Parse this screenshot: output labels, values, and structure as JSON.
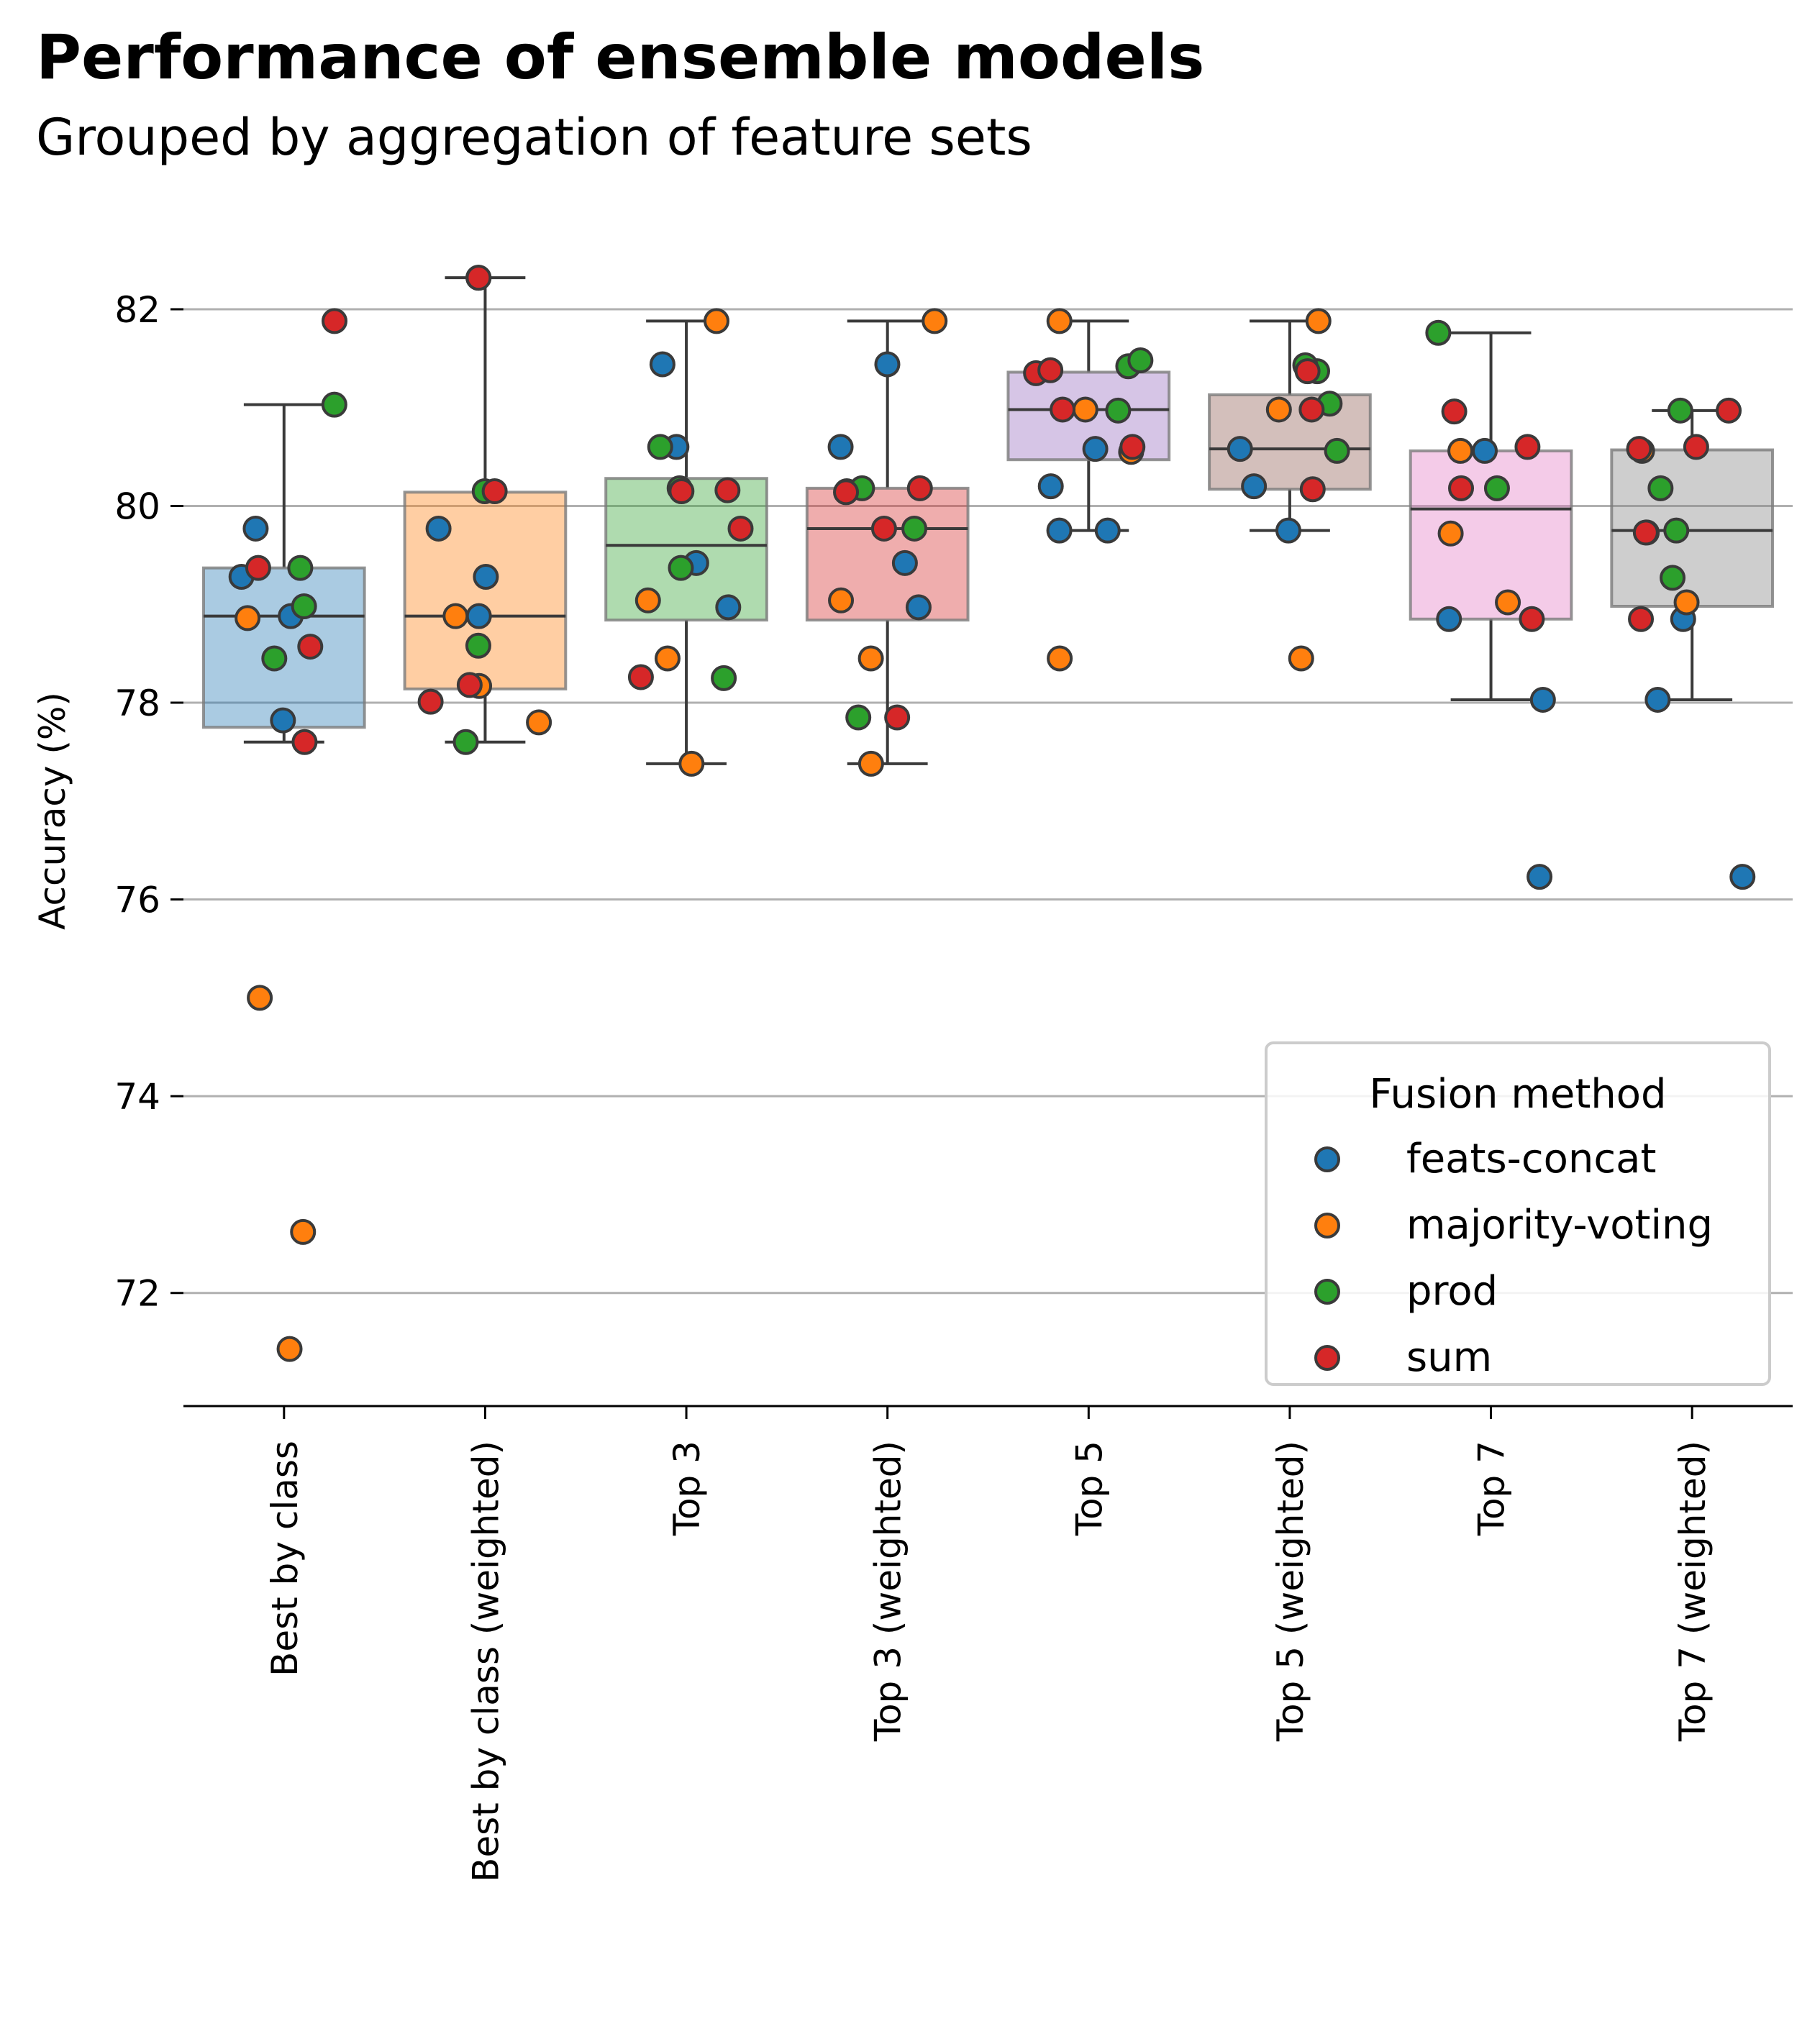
{
  "title": "Performance of ensemble models",
  "subtitle": "Grouped by aggregation of feature sets",
  "chart_data": {
    "type": "box+strip",
    "ylabel": "Accuracy (%)",
    "xlabel": "",
    "ylim": [
      70.85,
      82.95
    ],
    "yticks": [
      72,
      74,
      76,
      78,
      80,
      82
    ],
    "grid": "horizontal",
    "categories": [
      "Best by class",
      "Best by class (weighted)",
      "Top 3",
      "Top 3 (weighted)",
      "Top 5",
      "Top 5 (weighted)",
      "Top 7",
      "Top 7 (weighted)"
    ],
    "box_colors": [
      "#1f77b4",
      "#ff7f0e",
      "#2ca02c",
      "#d62728",
      "#9467bd",
      "#8c564b",
      "#e377c2",
      "#7f7f7f"
    ],
    "boxes": [
      {
        "q1": 77.75,
        "median": 78.88,
        "q3": 79.37,
        "whisker_low": 77.6,
        "whisker_high": 81.03
      },
      {
        "q1": 78.14,
        "median": 78.88,
        "q3": 80.14,
        "whisker_low": 77.6,
        "whisker_high": 82.32
      },
      {
        "q1": 78.84,
        "median": 79.6,
        "q3": 80.28,
        "whisker_low": 77.38,
        "whisker_high": 81.88
      },
      {
        "q1": 78.84,
        "median": 79.77,
        "q3": 80.18,
        "whisker_low": 77.38,
        "whisker_high": 81.88
      },
      {
        "q1": 80.47,
        "median": 80.98,
        "q3": 81.36,
        "whisker_low": 79.75,
        "whisker_high": 81.88
      },
      {
        "q1": 80.17,
        "median": 80.58,
        "q3": 81.13,
        "whisker_low": 79.75,
        "whisker_high": 81.88
      },
      {
        "q1": 78.85,
        "median": 79.97,
        "q3": 80.56,
        "whisker_low": 78.03,
        "whisker_high": 81.76
      },
      {
        "q1": 78.98,
        "median": 79.75,
        "q3": 80.57,
        "whisker_low": 78.03,
        "whisker_high": 80.97
      }
    ],
    "legend": {
      "title": "Fusion method",
      "placement": "lower-right"
    },
    "series": [
      {
        "name": "feats-concat",
        "color": "#1f77b4",
        "points": [
          [
            0,
            77.82
          ],
          [
            0,
            78.88
          ],
          [
            0,
            79.28
          ],
          [
            0,
            79.77
          ],
          [
            1,
            78.88
          ],
          [
            1,
            79.28
          ],
          [
            1,
            79.77
          ],
          [
            2,
            78.97
          ],
          [
            2,
            79.42
          ],
          [
            2,
            80.6
          ],
          [
            2,
            81.44
          ],
          [
            3,
            78.97
          ],
          [
            3,
            79.42
          ],
          [
            3,
            80.6
          ],
          [
            3,
            81.44
          ],
          [
            4,
            79.75
          ],
          [
            4,
            79.75
          ],
          [
            4,
            80.2
          ],
          [
            4,
            80.58
          ],
          [
            5,
            79.75
          ],
          [
            5,
            80.2
          ],
          [
            5,
            80.58
          ],
          [
            6,
            76.23
          ],
          [
            6,
            78.03
          ],
          [
            6,
            78.85
          ],
          [
            6,
            80.56
          ],
          [
            7,
            76.23
          ],
          [
            7,
            78.03
          ],
          [
            7,
            78.85
          ]
        ]
      },
      {
        "name": "majority-voting",
        "color": "#ff7f0e",
        "points": [
          [
            0,
            71.43
          ],
          [
            0,
            72.62
          ],
          [
            0,
            75.0
          ],
          [
            0,
            78.86
          ],
          [
            1,
            77.8
          ],
          [
            1,
            78.17
          ],
          [
            1,
            78.88
          ],
          [
            2,
            77.38
          ],
          [
            2,
            78.45
          ],
          [
            2,
            79.04
          ],
          [
            2,
            81.88
          ],
          [
            3,
            77.38
          ],
          [
            3,
            78.45
          ],
          [
            3,
            79.04
          ],
          [
            3,
            81.88
          ],
          [
            4,
            78.45
          ],
          [
            4,
            80.55
          ],
          [
            4,
            80.98
          ],
          [
            4,
            81.88
          ],
          [
            5,
            78.45
          ],
          [
            5,
            80.98
          ],
          [
            5,
            81.88
          ],
          [
            6,
            79.02
          ],
          [
            6,
            79.72
          ],
          [
            6,
            80.56
          ],
          [
            7,
            79.02
          ],
          [
            7,
            79.73
          ],
          [
            7,
            80.56
          ]
        ]
      },
      {
        "name": "prod",
        "color": "#2ca02c",
        "points": [
          [
            0,
            78.45
          ],
          [
            0,
            78.98
          ],
          [
            0,
            79.37
          ],
          [
            0,
            81.03
          ],
          [
            1,
            77.6
          ],
          [
            1,
            78.58
          ],
          [
            1,
            80.15
          ],
          [
            1,
            82.32
          ],
          [
            2,
            78.25
          ],
          [
            2,
            79.37
          ],
          [
            2,
            80.18
          ],
          [
            2,
            80.6
          ],
          [
            3,
            77.85
          ],
          [
            3,
            79.77
          ],
          [
            3,
            80.15
          ],
          [
            3,
            80.18
          ],
          [
            4,
            80.97
          ],
          [
            4,
            81.42
          ],
          [
            4,
            81.48
          ],
          [
            5,
            80.56
          ],
          [
            5,
            81.04
          ],
          [
            5,
            81.37
          ],
          [
            5,
            81.43
          ],
          [
            6,
            80.18
          ],
          [
            6,
            81.76
          ],
          [
            7,
            79.27
          ],
          [
            7,
            79.75
          ],
          [
            7,
            80.18
          ],
          [
            7,
            80.97
          ]
        ]
      },
      {
        "name": "sum",
        "color": "#d62728",
        "points": [
          [
            0,
            77.6
          ],
          [
            0,
            78.57
          ],
          [
            0,
            79.37
          ],
          [
            0,
            81.88
          ],
          [
            1,
            78.01
          ],
          [
            1,
            78.18
          ],
          [
            1,
            80.15
          ],
          [
            1,
            82.32
          ],
          [
            2,
            78.26
          ],
          [
            2,
            79.77
          ],
          [
            2,
            80.15
          ],
          [
            2,
            80.16
          ],
          [
            3,
            77.85
          ],
          [
            3,
            79.77
          ],
          [
            3,
            80.14
          ],
          [
            3,
            80.18
          ],
          [
            4,
            80.6
          ],
          [
            4,
            80.98
          ],
          [
            4,
            81.35
          ],
          [
            4,
            81.38
          ],
          [
            5,
            80.17
          ],
          [
            5,
            80.98
          ],
          [
            5,
            81.37
          ],
          [
            6,
            78.85
          ],
          [
            6,
            80.18
          ],
          [
            6,
            80.6
          ],
          [
            6,
            80.96
          ],
          [
            7,
            78.85
          ],
          [
            7,
            79.73
          ],
          [
            7,
            80.58
          ],
          [
            7,
            80.6
          ],
          [
            7,
            80.97
          ]
        ]
      }
    ]
  }
}
